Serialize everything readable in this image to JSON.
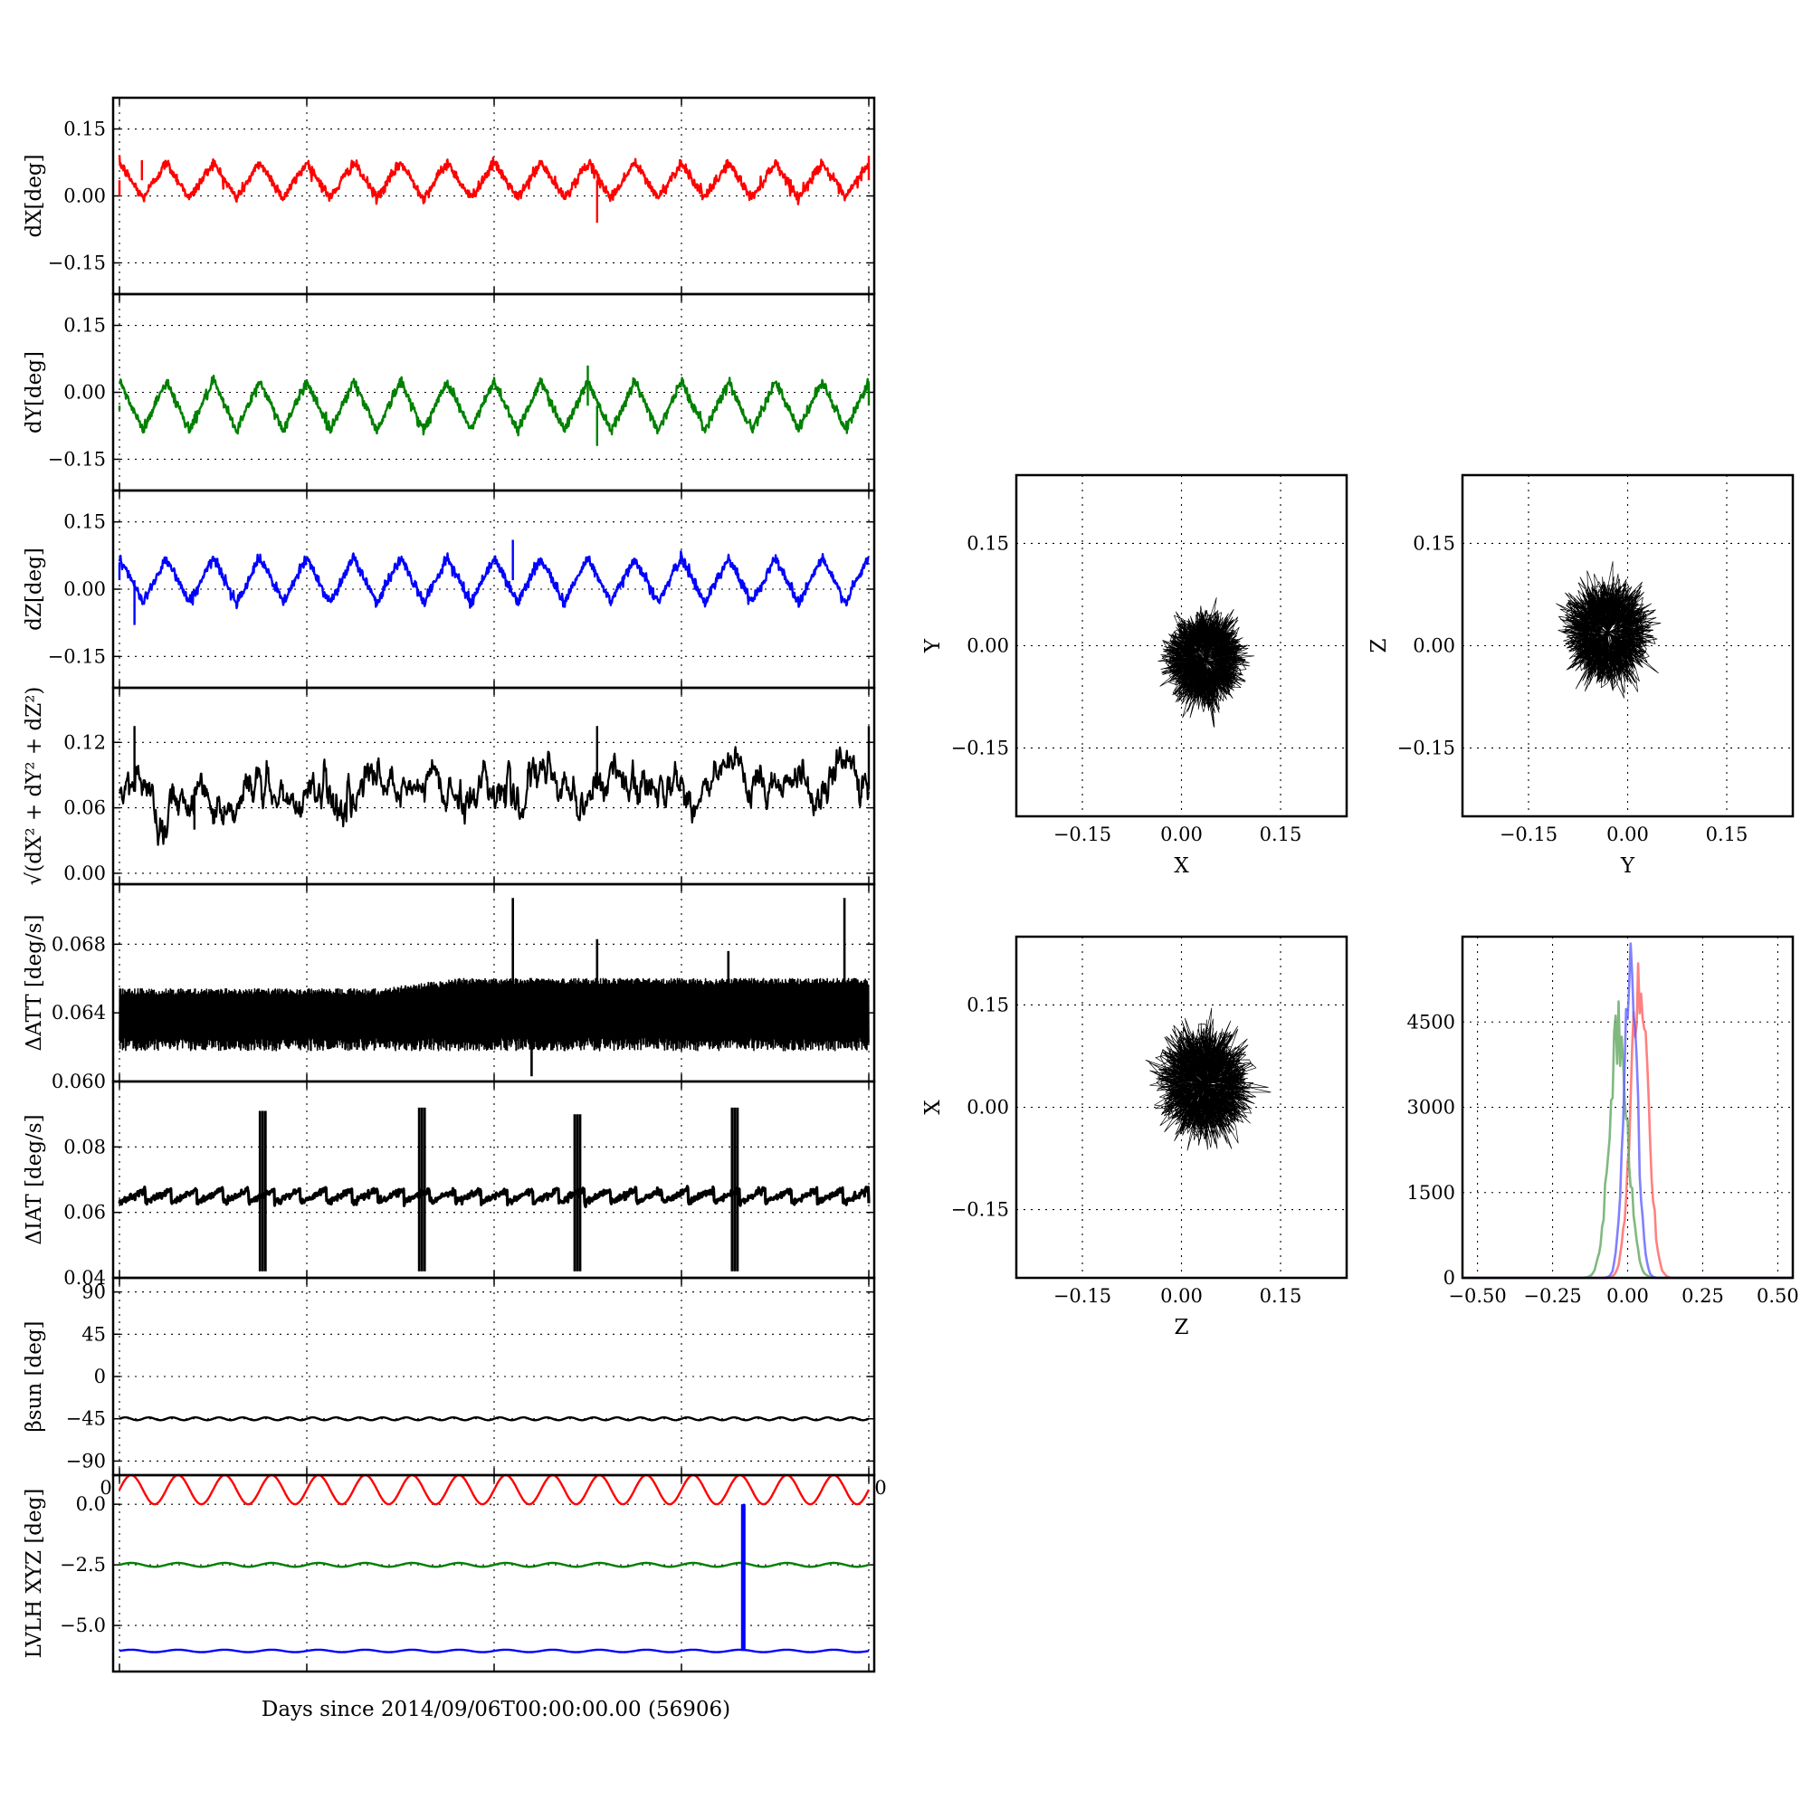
{
  "figure": {
    "xlabel": "Days since 2014/09/06T00:00:00.00 (56906)"
  },
  "chart_data": [
    {
      "id": "dx",
      "type": "line",
      "ylabel": "dX[deg]",
      "color": "#ff0000",
      "ylim": [
        -0.22,
        0.22
      ],
      "yticks": [
        -0.15,
        0.0,
        0.15
      ],
      "ytick_labels": [
        "−0.15",
        "0.00",
        "0.15"
      ],
      "xlim": [
        0,
        4
      ],
      "periods": 16,
      "mean": 0.035,
      "amplitude": 0.04,
      "key_points": [
        [
          0.0,
          0.0
        ],
        [
          0.12,
          0.08
        ],
        [
          2.55,
          -0.06
        ],
        [
          4.0,
          0.09
        ]
      ]
    },
    {
      "id": "dy",
      "type": "line",
      "ylabel": "dY[deg]",
      "color": "#008000",
      "ylim": [
        -0.22,
        0.22
      ],
      "yticks": [
        -0.15,
        0.0,
        0.15
      ],
      "ytick_labels": [
        "−0.15",
        "0.00",
        "0.15"
      ],
      "xlim": [
        0,
        4
      ],
      "periods": 16,
      "mean": -0.03,
      "amplitude": 0.055,
      "key_points": [
        [
          0.0,
          -0.04
        ],
        [
          2.5,
          0.06
        ],
        [
          2.55,
          -0.12
        ],
        [
          4.0,
          0.02
        ]
      ]
    },
    {
      "id": "dz",
      "type": "line",
      "ylabel": "dZ[deg]",
      "color": "#0000ff",
      "ylim": [
        -0.22,
        0.22
      ],
      "yticks": [
        -0.15,
        0.0,
        0.15
      ],
      "ytick_labels": [
        "−0.15",
        "0.00",
        "0.15"
      ],
      "xlim": [
        0,
        4
      ],
      "periods": 16,
      "mean": 0.02,
      "amplitude": 0.05,
      "key_points": [
        [
          0.0,
          0.06
        ],
        [
          2.1,
          0.11
        ],
        [
          0.08,
          -0.08
        ],
        [
          4.0,
          0.02
        ]
      ]
    },
    {
      "id": "rss",
      "type": "line",
      "ylabel": "√(dX² + dY² + dZ²)",
      "color": "#000000",
      "ylim": [
        -0.01,
        0.17
      ],
      "yticks": [
        0.0,
        0.06,
        0.12
      ],
      "ytick_labels": [
        "0.00",
        "0.06",
        "0.12"
      ],
      "xlim": [
        0,
        4
      ],
      "mean": 0.077,
      "amplitude": 0.012,
      "key_points": [
        [
          0.08,
          0.135
        ],
        [
          2.55,
          0.135
        ],
        [
          4.0,
          0.135
        ],
        [
          0.4,
          0.04
        ]
      ]
    },
    {
      "id": "datt",
      "type": "line",
      "ylabel": "ΔATT [deg/s]",
      "color": "#000000",
      "ylim": [
        0.06,
        0.0715
      ],
      "yticks": [
        0.06,
        0.064,
        0.068
      ],
      "ytick_labels": [
        "0.060",
        "0.064",
        "0.068"
      ],
      "xlim": [
        0,
        4
      ],
      "mean": 0.0644,
      "key_points": [
        [
          2.1,
          0.0707
        ],
        [
          3.87,
          0.0707
        ],
        [
          2.55,
          0.0683
        ],
        [
          3.25,
          0.0676
        ],
        [
          2.2,
          0.0603
        ]
      ]
    },
    {
      "id": "diat",
      "type": "line",
      "ylabel": "ΔIAT [deg/s]",
      "color": "#000000",
      "ylim": [
        0.04,
        0.1
      ],
      "yticks": [
        0.04,
        0.06,
        0.08
      ],
      "ytick_labels": [
        "0.04",
        "0.06",
        "0.08"
      ],
      "xlim": [
        0,
        4
      ],
      "sawtooth_range": [
        0.063,
        0.067
      ],
      "sawtooth_periods": 29,
      "spikes": [
        [
          0.75,
          0.042,
          0.091
        ],
        [
          1.6,
          0.042,
          0.092
        ],
        [
          2.43,
          0.042,
          0.09
        ],
        [
          3.27,
          0.042,
          0.092
        ]
      ]
    },
    {
      "id": "beta",
      "type": "line",
      "ylabel": "βsun [deg]",
      "color": "#000000",
      "ylim": [
        -105,
        105
      ],
      "yticks": [
        -90,
        -45,
        0,
        45,
        90
      ],
      "ytick_labels": [
        "−90",
        "−45",
        "0",
        "45",
        "90"
      ],
      "xlim": [
        0,
        4
      ],
      "mean": -45,
      "amplitude": 1.5,
      "periods": 32,
      "corner_labels": [
        "0",
        "0"
      ]
    },
    {
      "id": "lvlh",
      "type": "line",
      "ylabel": "LVLH XYZ [deg]",
      "ylim": [
        -6.9,
        1.2
      ],
      "yticks": [
        -5.0,
        -2.5,
        0.0
      ],
      "ytick_labels": [
        "−5.0",
        "−2.5",
        "0.0"
      ],
      "xlim": [
        0,
        4
      ],
      "series": [
        {
          "color": "#ff0000",
          "mean": 0.6,
          "amplitude": 0.6,
          "periods": 16
        },
        {
          "color": "#008000",
          "mean": -2.5,
          "amplitude": 0.08,
          "periods": 16
        },
        {
          "color": "#0000ff",
          "mean": -6.05,
          "amplitude": 0.05,
          "periods": 16,
          "spike": [
            3.33,
            -6.05,
            0.0
          ]
        }
      ]
    },
    {
      "id": "xy",
      "type": "scatter",
      "xlabel": "X",
      "ylabel": "Y",
      "xlim": [
        -0.25,
        0.25
      ],
      "ylim": [
        -0.25,
        0.25
      ],
      "ticks": [
        -0.15,
        0.0,
        0.15
      ],
      "tick_labels": [
        "−0.15",
        "0.00",
        "0.15"
      ],
      "center": [
        0.035,
        -0.02
      ],
      "radius": 0.035,
      "spread": 0.015
    },
    {
      "id": "yz",
      "type": "scatter",
      "xlabel": "Y",
      "ylabel": "Z",
      "xlim": [
        -0.25,
        0.25
      ],
      "ylim": [
        -0.25,
        0.25
      ],
      "ticks": [
        -0.15,
        0.0,
        0.15
      ],
      "tick_labels": [
        "−0.15",
        "0.00",
        "0.15"
      ],
      "center": [
        -0.03,
        0.02
      ],
      "radius": 0.038,
      "spread": 0.016
    },
    {
      "id": "zx",
      "type": "scatter",
      "xlabel": "Z",
      "ylabel": "X",
      "xlim": [
        -0.25,
        0.25
      ],
      "ylim": [
        -0.25,
        0.25
      ],
      "ticks": [
        -0.15,
        0.0,
        0.15
      ],
      "tick_labels": [
        "−0.15",
        "0.00",
        "0.15"
      ],
      "center": [
        0.035,
        0.035
      ],
      "radius": 0.04,
      "spread": 0.018
    },
    {
      "id": "hist",
      "type": "line",
      "xlim": [
        -0.55,
        0.55
      ],
      "ylim": [
        0,
        6000
      ],
      "xticks": [
        -0.5,
        -0.25,
        0.0,
        0.25,
        0.5
      ],
      "xtick_labels": [
        "−0.50",
        "−0.25",
        "0.00",
        "0.25",
        "0.50"
      ],
      "yticks": [
        0,
        1500,
        3000,
        4500
      ],
      "ytick_labels": [
        "0",
        "1500",
        "3000",
        "4500"
      ],
      "series": [
        {
          "color": "#ff6060",
          "center": 0.04,
          "width": 0.05,
          "peak": 5500
        },
        {
          "color": "#60a860",
          "center": -0.03,
          "width": 0.055,
          "peak": 4500
        },
        {
          "color": "#6060ff",
          "center": 0.01,
          "width": 0.04,
          "peak": 5300
        }
      ]
    }
  ]
}
